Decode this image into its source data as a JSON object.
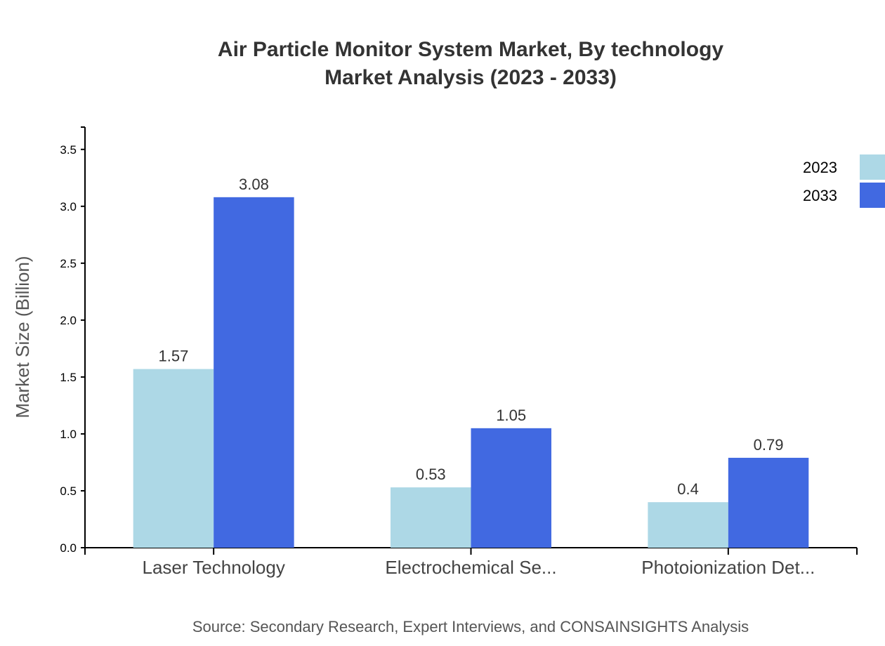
{
  "chart_data": {
    "type": "bar",
    "title": "Air Particle Monitor System Market, By technology",
    "subtitle": "Market Analysis (2023 - 2033)",
    "xlabel": "",
    "ylabel": "Market Size (Billion)",
    "categories": [
      "Laser Technology",
      "Electrochemical Se...",
      "Photoionization Det..."
    ],
    "series": [
      {
        "name": "2023",
        "color": "#add8e6",
        "values": [
          1.57,
          0.53,
          0.4
        ]
      },
      {
        "name": "2033",
        "color": "#4169e1",
        "values": [
          3.08,
          1.05,
          0.79
        ]
      }
    ],
    "ylim": [
      0,
      3.696
    ],
    "yticks": [
      "0.0",
      "0.5",
      "1.0",
      "1.5",
      "2.0",
      "2.5",
      "3.0",
      "3.5"
    ],
    "grid": false,
    "legend": "top-right",
    "source": "Source: Secondary Research, Expert Interviews, and CONSAINSIGHTS Analysis"
  }
}
